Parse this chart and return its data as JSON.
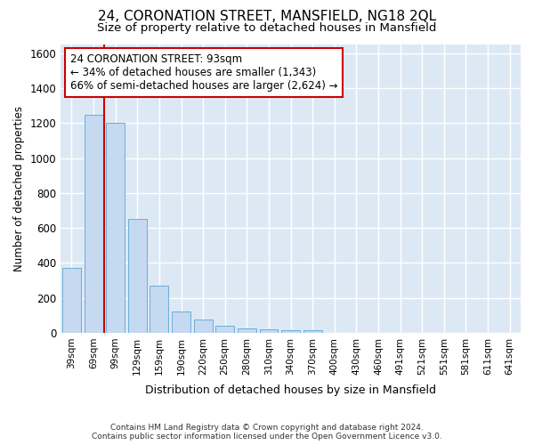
{
  "title": "24, CORONATION STREET, MANSFIELD, NG18 2QL",
  "subtitle": "Size of property relative to detached houses in Mansfield",
  "xlabel": "Distribution of detached houses by size in Mansfield",
  "ylabel": "Number of detached properties",
  "footnote": "Contains HM Land Registry data © Crown copyright and database right 2024.\nContains public sector information licensed under the Open Government Licence v3.0.",
  "bar_labels": [
    "39sqm",
    "69sqm",
    "99sqm",
    "129sqm",
    "159sqm",
    "190sqm",
    "220sqm",
    "250sqm",
    "280sqm",
    "310sqm",
    "340sqm",
    "370sqm",
    "400sqm",
    "430sqm",
    "460sqm",
    "491sqm",
    "521sqm",
    "551sqm",
    "581sqm",
    "611sqm",
    "641sqm"
  ],
  "bar_values": [
    370,
    1250,
    1200,
    650,
    270,
    120,
    75,
    40,
    25,
    20,
    15,
    15,
    0,
    0,
    0,
    0,
    0,
    0,
    0,
    0,
    0
  ],
  "bar_color": "#c5d9f0",
  "bar_edgecolor": "#6baed6",
  "property_bin_index": 1,
  "redline_x": 1.5,
  "annotation_text": "24 CORONATION STREET: 93sqm\n← 34% of detached houses are smaller (1,343)\n66% of semi-detached houses are larger (2,624) →",
  "annotation_box_color": "#ffffff",
  "annotation_box_edgecolor": "#cc0000",
  "redline_color": "#cc0000",
  "ylim": [
    0,
    1650
  ],
  "yticks": [
    0,
    200,
    400,
    600,
    800,
    1000,
    1200,
    1400,
    1600
  ],
  "bg_color": "#ffffff",
  "plot_bg_color": "#dce9f5",
  "grid_color": "#ffffff",
  "title_fontsize": 11,
  "subtitle_fontsize": 9.5,
  "annotation_fontsize": 8.5
}
